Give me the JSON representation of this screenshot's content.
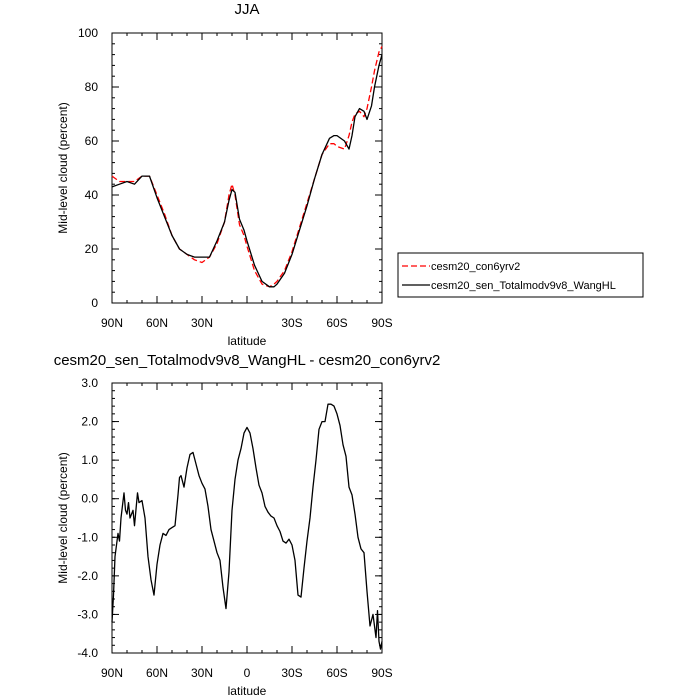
{
  "chart_data": [
    {
      "type": "line",
      "title": "JJA",
      "xlabel": "latitude",
      "ylabel": "Mid-level cloud (percent)",
      "xlim": [
        -90,
        90
      ],
      "ylim": [
        0,
        100
      ],
      "xticks": [
        -90,
        -60,
        -30,
        0,
        30,
        60,
        90
      ],
      "xtick_labels": [
        "90N",
        "60N",
        "30N",
        "0",
        "30S",
        "60S",
        "90S"
      ],
      "xtick_show": [
        true,
        true,
        true,
        false,
        true,
        true,
        true
      ],
      "yticks": [
        0,
        20,
        40,
        60,
        80,
        100
      ],
      "ytick_labels": [
        "0",
        "20",
        "40",
        "60",
        "80",
        "100"
      ],
      "legend_position": "right",
      "legend": {
        "entries": [
          {
            "label": "cesm20_con6yrv2",
            "color": "#ff0000",
            "dash": "dashed"
          },
          {
            "label": "cesm20_sen_Totalmodv9v8_WangHL",
            "color": "#000000",
            "dash": "solid"
          }
        ]
      },
      "series": [
        {
          "name": "cesm20_con6yrv2",
          "color": "#ff0000",
          "dash": "dashed",
          "x": [
            -90,
            -85,
            -80,
            -75,
            -70,
            -65,
            -60,
            -55,
            -50,
            -45,
            -40,
            -35,
            -30,
            -25,
            -20,
            -15,
            -12,
            -10,
            -8,
            -5,
            -2,
            0,
            5,
            10,
            15,
            18,
            20,
            25,
            30,
            35,
            40,
            45,
            50,
            55,
            58,
            60,
            65,
            68,
            70,
            72,
            75,
            78,
            80,
            83,
            85,
            88,
            90
          ],
          "y": [
            47,
            45,
            45,
            45,
            47,
            47,
            40,
            33,
            25,
            20,
            18,
            16,
            15,
            17,
            22,
            30,
            40,
            44,
            40,
            29,
            25,
            21,
            12,
            7,
            6,
            7,
            8,
            12,
            19,
            28,
            37,
            46,
            55,
            59,
            59,
            58,
            57,
            62,
            67,
            70,
            71,
            69,
            72,
            80,
            86,
            93,
            95
          ]
        },
        {
          "name": "cesm20_sen_Totalmodv9v8_WangHL",
          "color": "#000000",
          "dash": "solid",
          "x": [
            -90,
            -85,
            -80,
            -75,
            -70,
            -65,
            -60,
            -55,
            -50,
            -45,
            -40,
            -35,
            -30,
            -25,
            -20,
            -15,
            -12,
            -10,
            -8,
            -5,
            -2,
            0,
            5,
            10,
            15,
            18,
            20,
            25,
            30,
            35,
            40,
            45,
            50,
            55,
            58,
            60,
            65,
            68,
            70,
            72,
            75,
            78,
            80,
            83,
            85,
            88,
            90
          ],
          "y": [
            43,
            44,
            45,
            44,
            47,
            47,
            39,
            32,
            25,
            20,
            18,
            17,
            17,
            17,
            23,
            30,
            38,
            42,
            41,
            31,
            27,
            23,
            14,
            8,
            6,
            6,
            7,
            11,
            18,
            27,
            36,
            46,
            55,
            61,
            62,
            62,
            60,
            57,
            62,
            69,
            72,
            71,
            68,
            73,
            80,
            88,
            92
          ]
        }
      ]
    },
    {
      "type": "line",
      "title": "cesm20_sen_Totalmodv9v8_WangHL - cesm20_con6yrv2",
      "xlabel": "latitude",
      "ylabel": "Mid-level cloud (percent)",
      "xlim": [
        -90,
        90
      ],
      "ylim": [
        -4,
        3
      ],
      "xticks": [
        -90,
        -60,
        -30,
        0,
        30,
        60,
        90
      ],
      "xtick_labels": [
        "90N",
        "60N",
        "30N",
        "0",
        "30S",
        "60S",
        "90S"
      ],
      "xtick_show": [
        true,
        true,
        true,
        true,
        true,
        true,
        true
      ],
      "yticks": [
        -4,
        -3,
        -2,
        -1,
        0,
        1,
        2,
        3
      ],
      "ytick_labels": [
        "-4.0",
        "-3.0",
        "-2.0",
        "-1.0",
        "0.0",
        "1.0",
        "2.0",
        "3.0"
      ],
      "series": [
        {
          "name": "",
          "color": "#000000",
          "dash": "solid",
          "x": [
            -90,
            -89,
            -88,
            -86,
            -85,
            -84,
            -82,
            -81,
            -80,
            -79,
            -78,
            -76,
            -75,
            -73,
            -72,
            -70,
            -68,
            -66,
            -64,
            -62,
            -60,
            -58,
            -56,
            -54,
            -52,
            -50,
            -48,
            -46,
            -45,
            -44,
            -42,
            -41,
            -40,
            -38,
            -36,
            -34,
            -32,
            -30,
            -28,
            -26,
            -24,
            -22,
            -20,
            -18,
            -16,
            -14,
            -12,
            -10,
            -8,
            -6,
            -4,
            -2,
            0,
            2,
            4,
            6,
            8,
            10,
            12,
            14,
            16,
            18,
            20,
            22,
            24,
            26,
            28,
            30,
            32,
            34,
            36,
            38,
            40,
            42,
            44,
            46,
            48,
            50,
            52,
            54,
            56,
            58,
            60,
            62,
            64,
            66,
            68,
            70,
            72,
            74,
            76,
            78,
            80,
            82,
            84,
            86,
            87,
            88,
            89,
            90
          ],
          "y": [
            -3.2,
            -2.5,
            -1.5,
            -0.9,
            -1.1,
            -0.5,
            0.15,
            -0.3,
            -0.4,
            -0.1,
            -0.5,
            -0.3,
            -0.7,
            0.15,
            -0.1,
            -0.05,
            -0.5,
            -1.5,
            -2.1,
            -2.5,
            -1.7,
            -1.2,
            -0.9,
            -0.95,
            -0.8,
            -0.75,
            -0.7,
            0.1,
            0.55,
            0.6,
            0.3,
            0.55,
            0.8,
            1.15,
            1.2,
            0.9,
            0.6,
            0.4,
            0.25,
            -0.2,
            -0.8,
            -1.1,
            -1.4,
            -1.6,
            -2.3,
            -2.85,
            -1.9,
            -0.3,
            0.5,
            1.0,
            1.3,
            1.7,
            1.85,
            1.7,
            1.3,
            0.8,
            0.35,
            0.15,
            -0.2,
            -0.35,
            -0.45,
            -0.5,
            -0.7,
            -0.85,
            -1.1,
            -1.15,
            -1.05,
            -1.2,
            -1.6,
            -2.5,
            -2.55,
            -1.8,
            -1.1,
            -0.5,
            0.3,
            1.0,
            1.8,
            2.0,
            2.0,
            2.45,
            2.45,
            2.4,
            2.2,
            1.9,
            1.4,
            1.1,
            0.3,
            0.1,
            -0.4,
            -1.0,
            -1.3,
            -1.4,
            -2.4,
            -3.3,
            -3.0,
            -3.6,
            -2.9,
            -3.7,
            -3.9,
            -3.7
          ]
        }
      ]
    }
  ]
}
